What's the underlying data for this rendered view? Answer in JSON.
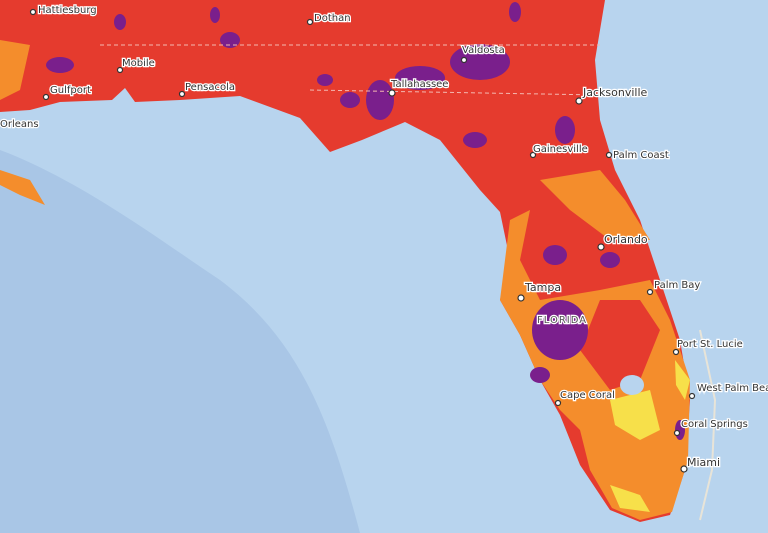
{
  "map": {
    "labels": [
      "Hattiesburg",
      "Dothan",
      "Mobile",
      "Valdosta",
      "Gulfport",
      "Pensacola",
      "Tallahassee",
      "Jacksonville",
      "Orleans",
      "Gainesville",
      "Palm Coast",
      "Orlando",
      "Palm Bay",
      "Tampa",
      "FLORIDA",
      "Port St. Lucie",
      "West Palm Beach",
      "Cape Coral",
      "Coral Springs",
      "Miami"
    ]
  }
}
